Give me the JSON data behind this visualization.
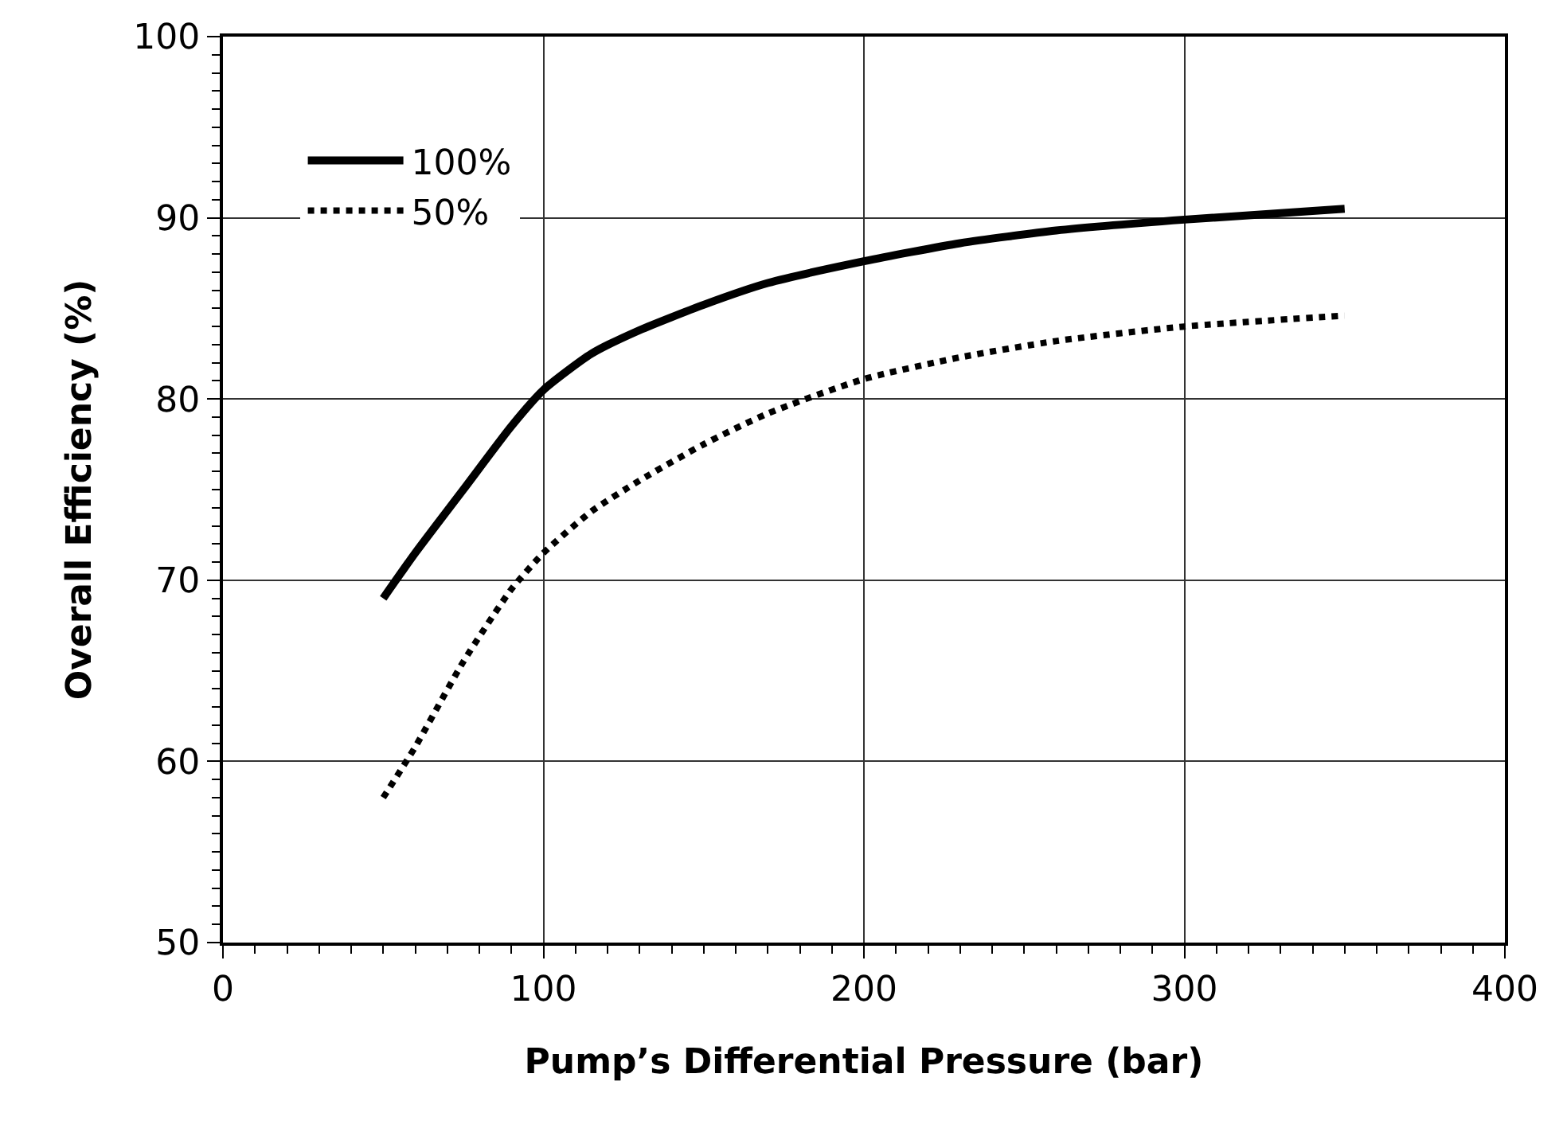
{
  "chart_data": {
    "type": "line",
    "xlabel": "Pump’s Differential Pressure (bar)",
    "ylabel": "Overall Efficiency (%)",
    "x": [
      50,
      60,
      75,
      90,
      100,
      115,
      130,
      150,
      170,
      200,
      230,
      260,
      300,
      350
    ],
    "series": [
      {
        "name": "100%",
        "color": "#000000",
        "line_style": "solid",
        "values": [
          69,
          71.5,
          75,
          78.5,
          80.5,
          82.5,
          83.8,
          85.2,
          86.4,
          87.6,
          88.6,
          89.3,
          89.9,
          90.5
        ]
      },
      {
        "name": "50%",
        "color": "#000000",
        "line_style": "dotted",
        "values": [
          58,
          60.8,
          65.5,
          69.5,
          71.5,
          73.8,
          75.5,
          77.5,
          79.2,
          81.1,
          82.3,
          83.2,
          84.0,
          84.6
        ]
      }
    ],
    "xlim": [
      0,
      400
    ],
    "xticks": [
      0,
      100,
      200,
      300,
      400
    ],
    "ylim": [
      50,
      100
    ],
    "yticks": [
      50,
      60,
      70,
      80,
      90,
      100
    ],
    "grid": true,
    "legend": "top left",
    "marker": "none"
  }
}
